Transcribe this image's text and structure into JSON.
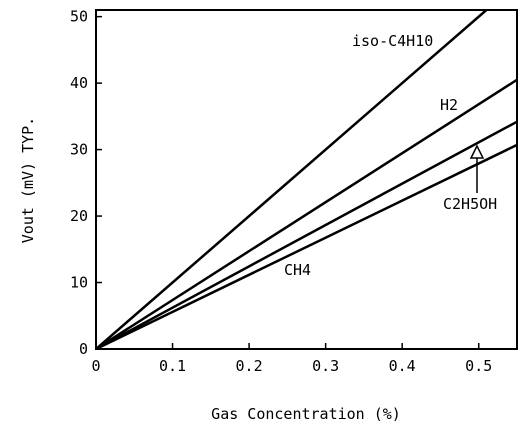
{
  "chart_data": {
    "type": "line",
    "xlabel": "Gas Concentration (%)",
    "ylabel": "Vout (mV)   TYP.",
    "xlim": [
      0,
      0.55
    ],
    "ylim": [
      0,
      51
    ],
    "x_ticks": [
      0,
      0.1,
      0.2,
      0.3,
      0.4,
      0.5
    ],
    "x_tick_labels": [
      "0",
      "0.1",
      "0.2",
      "0.3",
      "0.4",
      "0.5"
    ],
    "y_ticks": [
      0,
      10,
      20,
      30,
      40,
      50
    ],
    "y_tick_labels": [
      "0",
      "10",
      "20",
      "30",
      "40",
      "50"
    ],
    "grid": false,
    "legend": "inline labels",
    "series": [
      {
        "name": "iso-C4H10",
        "x": [
          0,
          0.51
        ],
        "y": [
          0,
          51
        ]
      },
      {
        "name": "H2",
        "x": [
          0,
          0.55
        ],
        "y": [
          0,
          40.5
        ]
      },
      {
        "name": "C2H5OH",
        "x": [
          0,
          0.55
        ],
        "y": [
          0,
          34.2
        ]
      },
      {
        "name": "CH4",
        "x": [
          0,
          0.55
        ],
        "y": [
          0,
          30.7
        ]
      }
    ]
  }
}
